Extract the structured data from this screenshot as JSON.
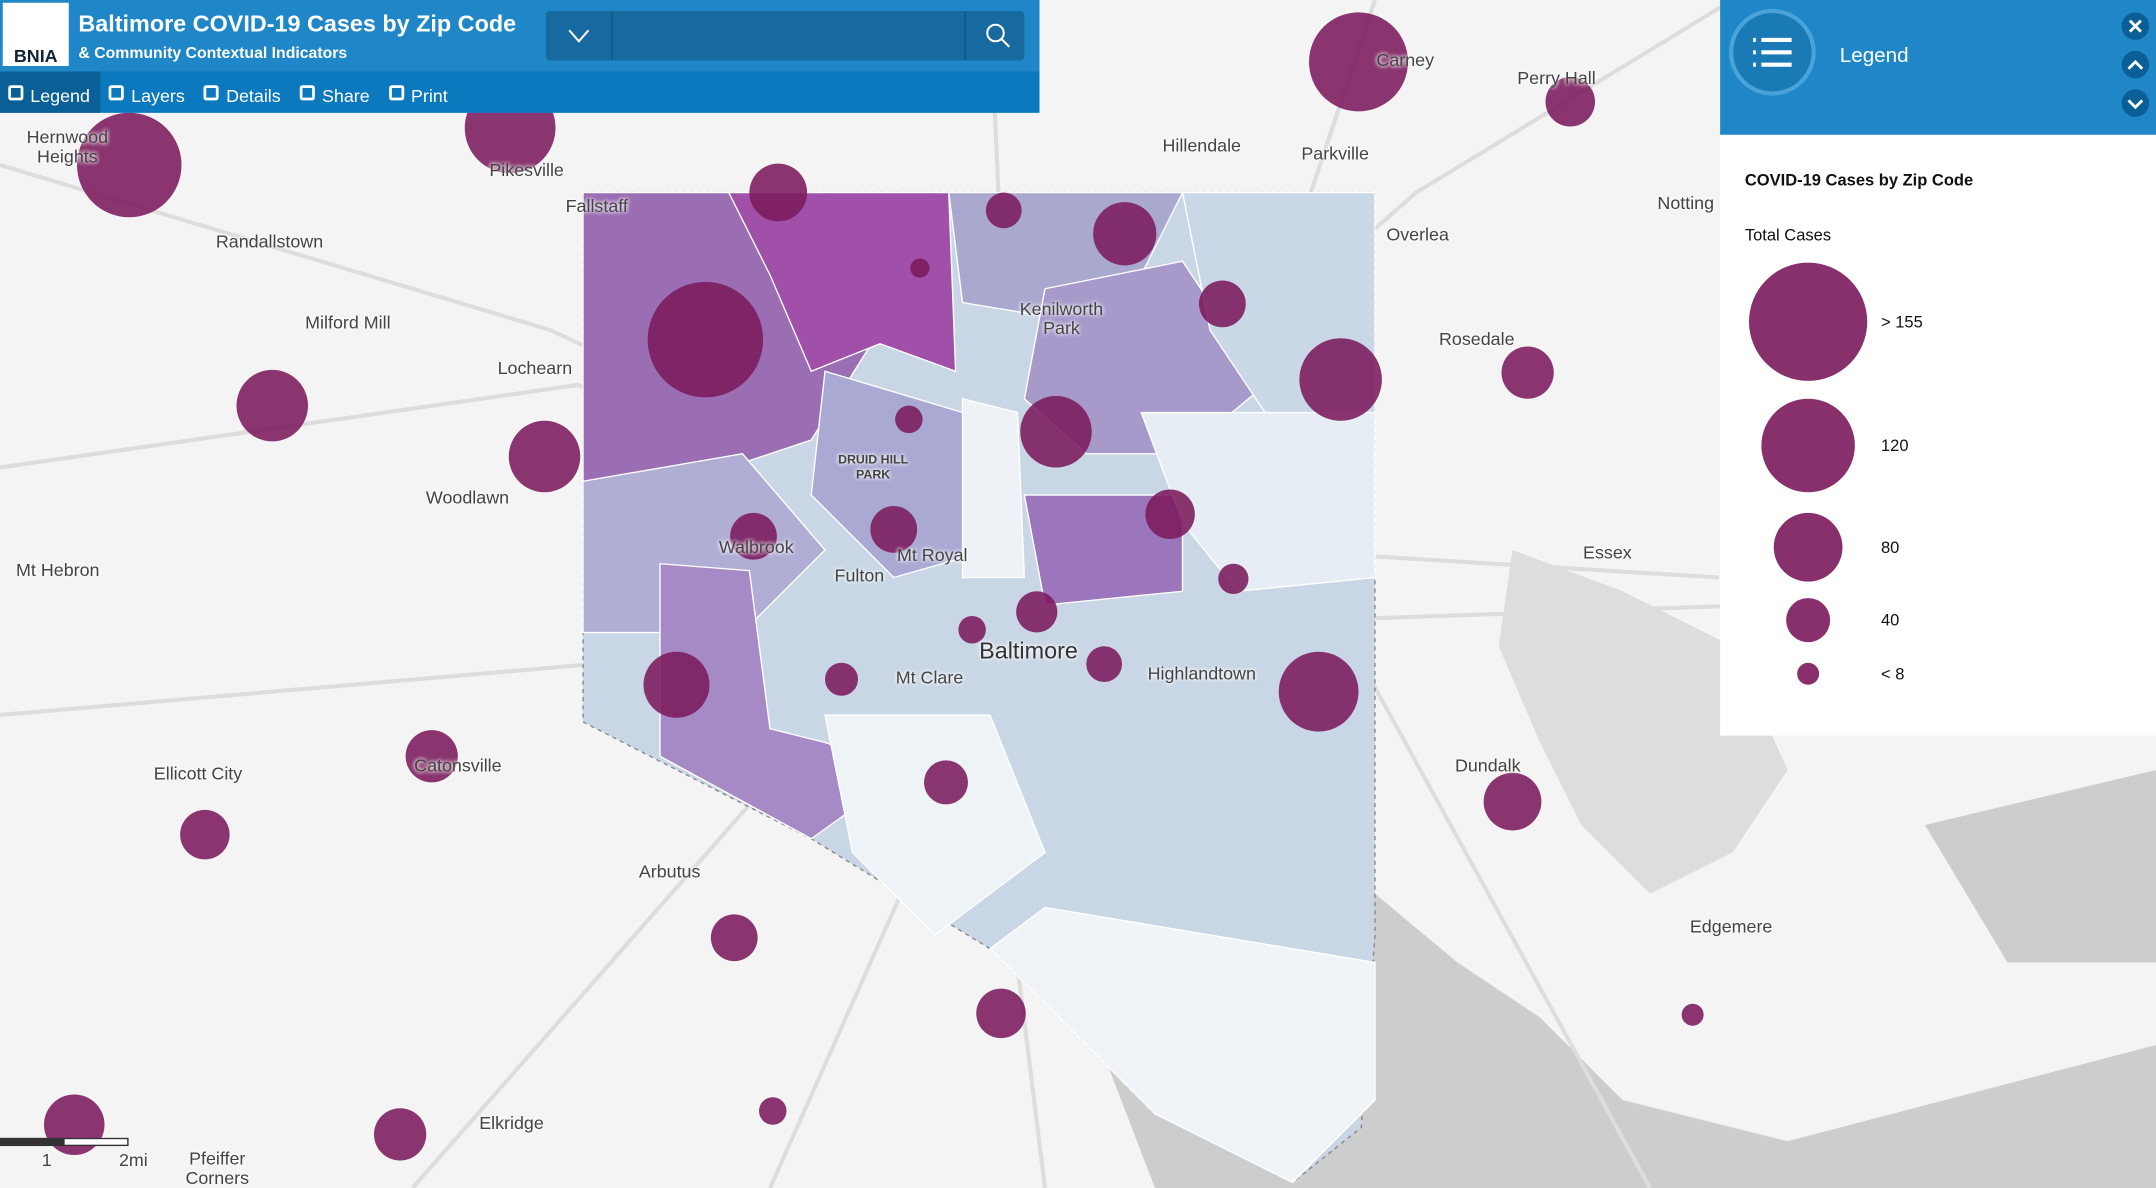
{
  "header": {
    "logo": "BNIA",
    "title": "Baltimore COVID-19 Cases by Zip Code",
    "subtitle": "& Community Contextual Indicators"
  },
  "toolbar": [
    "Legend",
    "Layers",
    "Details",
    "Share",
    "Print"
  ],
  "legend_panel": {
    "title": "Legend",
    "layer": "COVID-19 Cases by Zip Code",
    "field": "Total Cases",
    "items": [
      "> 155",
      "120",
      "80",
      "40",
      "< 8"
    ]
  },
  "map": {
    "places": [
      "Hernwood Heights",
      "Pikesville",
      "Fallstaff",
      "Randallstown",
      "Milford Mill",
      "Lochearn",
      "Woodlawn",
      "Mt Hebron",
      "Walbrook",
      "Mt Royal",
      "Fulton",
      "DRUID HILL PARK",
      "Kenilworth Park",
      "Hillendale",
      "Parkville",
      "Carney",
      "Perry Hall",
      "Overlea",
      "Notting",
      "Rosedale",
      "Essex",
      "Baltimore",
      "Mt Clare",
      "Highlandtown",
      "Ellicott City",
      "Catonsville",
      "Dundalk",
      "Arbutus",
      "Edgemere",
      "Elkridge",
      "Pfeiffer Corners"
    ],
    "scale": [
      "1",
      "2mi"
    ]
  }
}
